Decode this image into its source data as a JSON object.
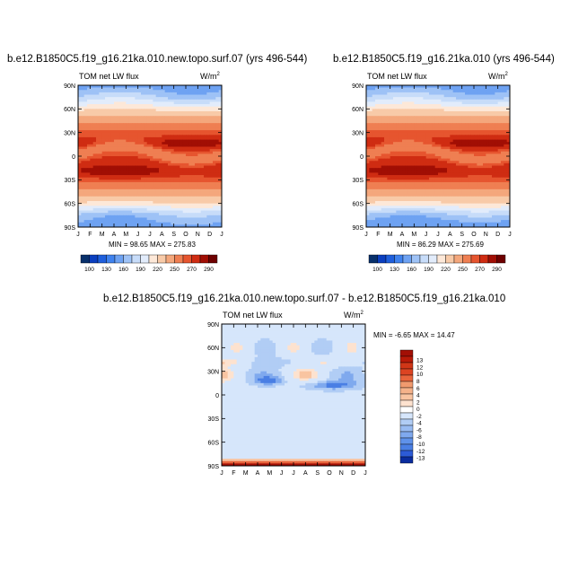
{
  "colors": {
    "cmap": [
      "#08306b",
      "#0b3fbf",
      "#1f5fdc",
      "#3f82ee",
      "#6ea2f2",
      "#9ec2f6",
      "#c7dcf9",
      "#e2ecfb",
      "#fde8d8",
      "#f8caa8",
      "#f4a77c",
      "#ef7f52",
      "#e6552f",
      "#cf2c12",
      "#a10e04",
      "#6e0000"
    ],
    "diff": {
      "zero": "#ffffff",
      "neg1": "#d6e6fb",
      "neg2": "#b1cdf5",
      "neg3": "#7fa9ee",
      "neg4": "#4a7fe4",
      "pos1": "#fde2cf",
      "pos2": "#f9c4a1",
      "pos3": "#f19a6e",
      "pos4": "#e8653c",
      "pos5": "#d03617",
      "pos6": "#a30f05"
    }
  },
  "chart_data": [
    {
      "type": "heatmap",
      "title": "b.e12.B1850C5.f19_g16.21ka.010.new.topo.surf.07 (yrs 496-544)",
      "left_label": "TOM net LW flux",
      "right_label": "W/m",
      "units_sup": "2",
      "stats": "MIN =  98.65 MAX = 275.83",
      "min": 98.65,
      "max": 275.83,
      "x_ticks": [
        "J",
        "F",
        "M",
        "A",
        "M",
        "J",
        "J",
        "A",
        "S",
        "O",
        "N",
        "D",
        "J"
      ],
      "y_ticks": [
        "90N",
        "60N",
        "30N",
        "0",
        "30S",
        "60S",
        "90S"
      ],
      "colorbar_ticks": [
        "100",
        "130",
        "160",
        "190",
        "220",
        "250",
        "270",
        "290"
      ]
    },
    {
      "type": "heatmap",
      "title": "b.e12.B1850C5.f19_g16.21ka.010 (yrs 496-544)",
      "left_label": "TOM net LW flux",
      "right_label": "W/m",
      "units_sup": "2",
      "stats": "MIN =  86.29 MAX = 275.69",
      "min": 86.29,
      "max": 275.69,
      "x_ticks": [
        "J",
        "F",
        "M",
        "A",
        "M",
        "J",
        "J",
        "A",
        "S",
        "O",
        "N",
        "D",
        "J"
      ],
      "y_ticks": [
        "90N",
        "60N",
        "30N",
        "0",
        "30S",
        "60S",
        "90S"
      ],
      "colorbar_ticks": [
        "100",
        "130",
        "160",
        "190",
        "220",
        "250",
        "270",
        "290"
      ]
    },
    {
      "type": "heatmap",
      "title": "b.e12.B1850C5.f19_g16.21ka.010.new.topo.surf.07 - b.e12.B1850C5.f19_g16.21ka.010",
      "left_label": "TOM net LW flux",
      "right_label": "W/m",
      "units_sup": "2",
      "stats": "MIN =  -6.65 MAX =  14.47",
      "min": -6.65,
      "max": 14.47,
      "x_ticks": [
        "J",
        "F",
        "M",
        "A",
        "M",
        "J",
        "J",
        "A",
        "S",
        "O",
        "N",
        "D",
        "J"
      ],
      "y_ticks": [
        "90N",
        "60N",
        "30N",
        "0",
        "30S",
        "60S",
        "90S"
      ],
      "colorbar_ticks": [
        "13",
        "12",
        "10",
        "8",
        "6",
        "4",
        "2",
        "0",
        "-2",
        "-4",
        "-6",
        "-8",
        "-10",
        "-12",
        "-13"
      ]
    }
  ]
}
